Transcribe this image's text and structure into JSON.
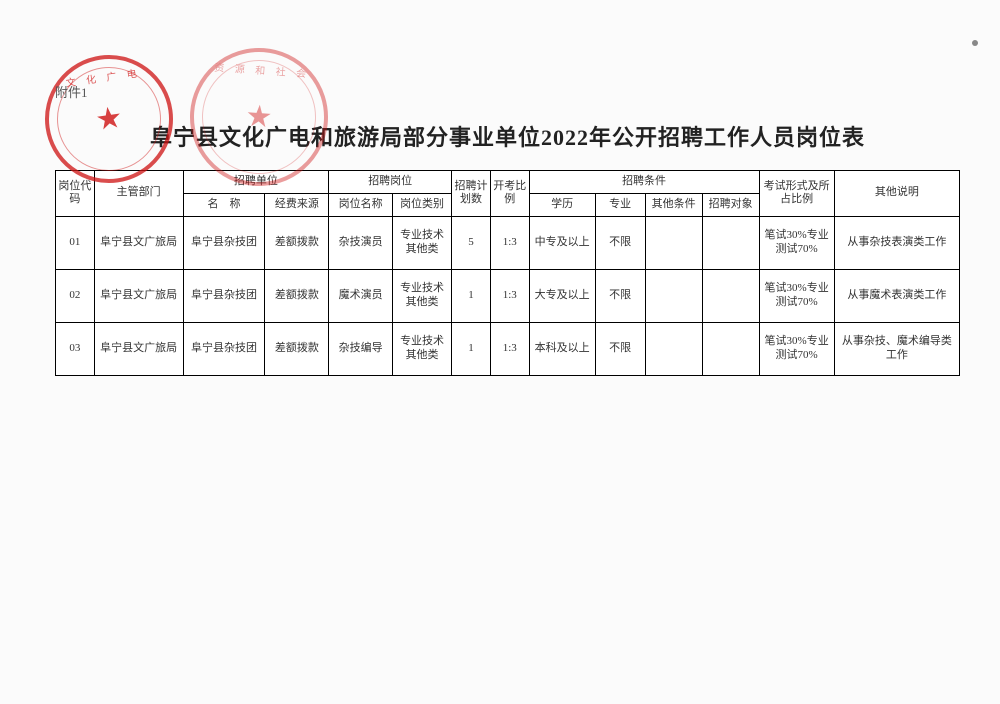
{
  "attachment_label": "附件1",
  "title": "阜宁县文化广电和旅游局部分事业单位2022年公开招聘工作人员岗位表",
  "headers": {
    "code": "岗位代码",
    "dept": "主管部门",
    "recruit_unit_group": "招聘单位",
    "unit_name": "名　称",
    "fund": "经费来源",
    "recruit_post_group": "招聘岗位",
    "post_name": "岗位名称",
    "post_type": "岗位类别",
    "plan": "招聘计划数",
    "ratio": "开考比例",
    "cond_group": "招聘条件",
    "edu": "学历",
    "major": "专业",
    "other_cond": "其他条件",
    "target": "招聘对象",
    "exam": "考试形式及所占比例",
    "note": "其他说明"
  },
  "rows": [
    {
      "code": "01",
      "dept": "阜宁县文广旅局",
      "unit": "阜宁县杂技团",
      "fund": "差额拨款",
      "post_name": "杂技演员",
      "post_type": "专业技术其他类",
      "plan": "5",
      "ratio": "1:3",
      "edu": "中专及以上",
      "major": "不限",
      "other": "",
      "target": "",
      "exam": "笔试30%专业测试70%",
      "note": "从事杂技表演类工作"
    },
    {
      "code": "02",
      "dept": "阜宁县文广旅局",
      "unit": "阜宁县杂技团",
      "fund": "差额拨款",
      "post_name": "魔术演员",
      "post_type": "专业技术其他类",
      "plan": "1",
      "ratio": "1:3",
      "edu": "大专及以上",
      "major": "不限",
      "other": "",
      "target": "",
      "exam": "笔试30%专业测试70%",
      "note": "从事魔术表演类工作"
    },
    {
      "code": "03",
      "dept": "阜宁县文广旅局",
      "unit": "阜宁县杂技团",
      "fund": "差额拨款",
      "post_name": "杂技编导",
      "post_type": "专业技术其他类",
      "plan": "1",
      "ratio": "1:3",
      "edu": "本科及以上",
      "major": "不限",
      "other": "",
      "target": "",
      "exam": "笔试30%专业测试70%",
      "note": "从事杂技、魔术编导类工作"
    }
  ],
  "stamp1_text": "文 化 广 电",
  "stamp2_text": "资 源 和 社 会"
}
